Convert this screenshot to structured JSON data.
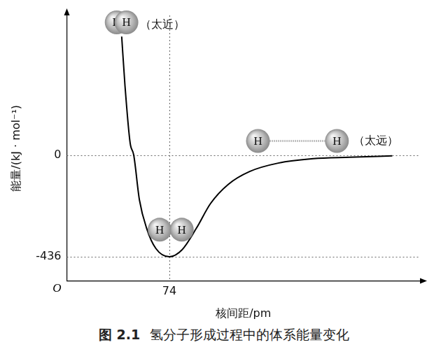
{
  "chart_data": {
    "type": "line",
    "title": "图 2.1　氢分子形成过程中的体系能量变化",
    "x_label": "核间距/pm",
    "y_label": "能量/(kJ · mol⁻¹)",
    "origin_label": "O",
    "x": [
      39.6,
      42,
      45.7,
      48.3,
      52.4,
      57.6,
      64.2,
      74,
      83.2,
      93.5,
      103.8,
      116.6,
      132,
      152.6,
      178,
      204,
      235
    ],
    "values": [
      509,
      296,
      52,
      0,
      -192,
      -314,
      -400,
      -436,
      -406,
      -314,
      -207,
      -125,
      -70,
      -34,
      -15,
      -9,
      -3
    ],
    "color": "#000000",
    "xlim": [
      0,
      255
    ],
    "ylim": [
      -540,
      600
    ],
    "xticks": [
      74
    ],
    "yticks": [
      -436,
      0
    ],
    "grid": true,
    "annotations": [
      {
        "atoms": [
          {
            "label": "H",
            "x": 36,
            "y": 570
          },
          {
            "label": "H",
            "x": 43,
            "y": 570
          }
        ],
        "text": "（太近）",
        "text_x": 53,
        "text_y": 558
      },
      {
        "atoms": [
          {
            "label": "H",
            "x": 67,
            "y": -320
          },
          {
            "label": "H",
            "x": 83,
            "y": -320
          }
        ]
      },
      {
        "atoms": [
          {
            "label": "H",
            "x": 138,
            "y": 61
          },
          {
            "label": "H",
            "x": 195,
            "y": 61
          }
        ],
        "text": "（太远）",
        "text_x": 207,
        "text_y": 61
      }
    ]
  }
}
